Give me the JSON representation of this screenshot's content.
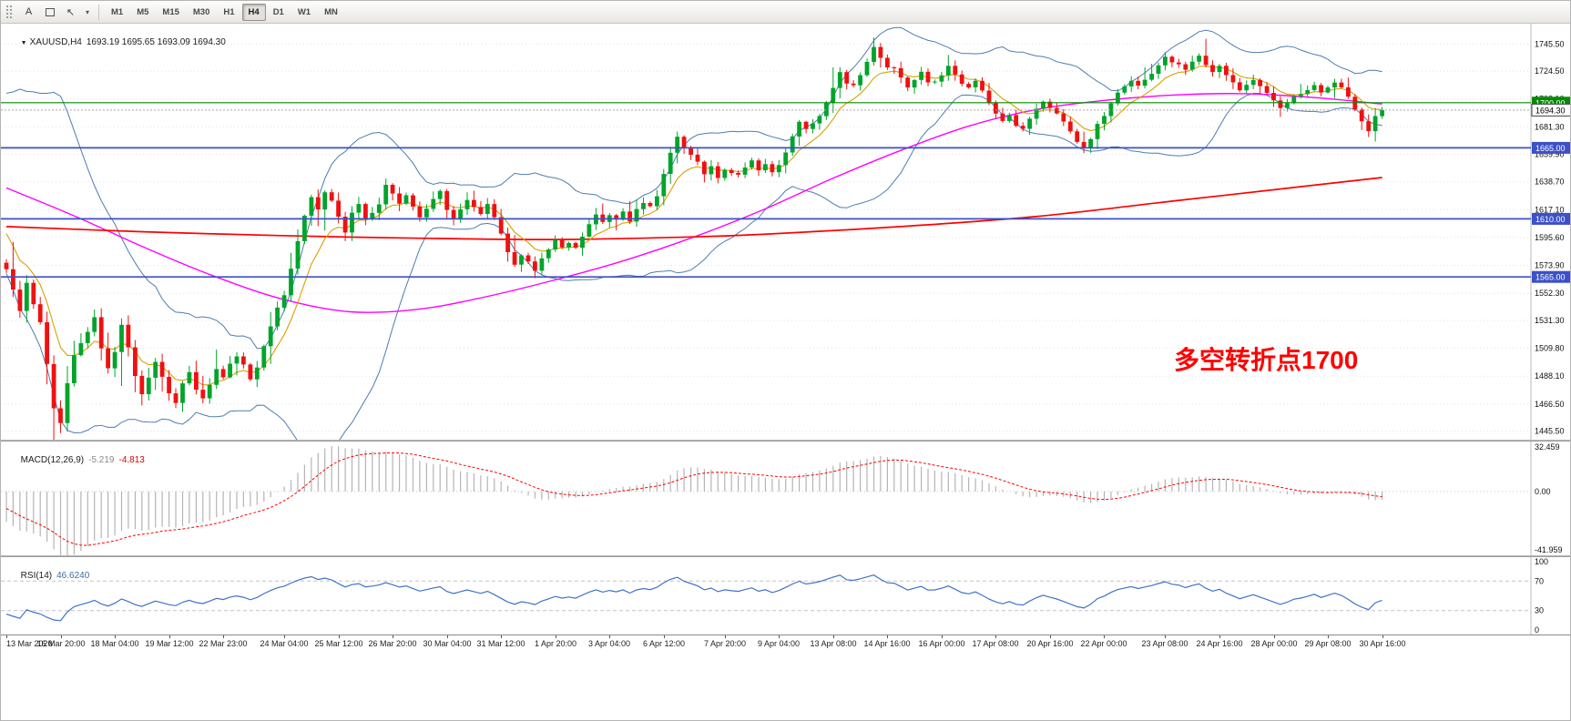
{
  "toolbar": {
    "left_buttons": [
      {
        "type": "grip",
        "name": "toolbar-drag-handle"
      },
      {
        "type": "text",
        "name": "annotation-letter-button",
        "label": "A"
      },
      {
        "type": "box",
        "name": "text-box-button"
      },
      {
        "type": "cursor",
        "name": "cursor-tool-button",
        "glyph": "↖"
      },
      {
        "type": "caret",
        "name": "cursor-dropdown-button",
        "glyph": "▾"
      }
    ],
    "timeframes": [
      "M1",
      "M5",
      "M15",
      "M30",
      "H1",
      "H4",
      "D1",
      "W1",
      "MN"
    ],
    "active_timeframe": "H4"
  },
  "main_chart": {
    "collapse_icon": "▼",
    "symbol_period": "XAUUSD,H4",
    "ohlc_text": "1693.19 1695.65 1693.09 1694.30",
    "scale": {
      "max": 1757.0,
      "min": 1443.1
    },
    "price_axis_labels": [
      "1745.50",
      "1724.50",
      "1703.10",
      "1681.30",
      "1659.90",
      "1638.70",
      "1617.10",
      "1595.60",
      "1573.90",
      "1552.30",
      "1531.30",
      "1509.80",
      "1488.10",
      "1466.50",
      "1445.50"
    ],
    "levels": [
      {
        "price": 1700.0,
        "label": "1700.00",
        "color": "green"
      },
      {
        "price": 1665.0,
        "label": "1665.00",
        "color": "blue"
      },
      {
        "price": 1610.0,
        "label": "1610.00",
        "color": "blue"
      },
      {
        "price": 1565.0,
        "label": "1565.00",
        "color": "blue"
      }
    ],
    "bid": {
      "price": 1694.3,
      "label": "1694.30"
    },
    "annotation": {
      "text": "多空转折点1700",
      "color": "#ff0000"
    },
    "ema_period": 8,
    "bb": {
      "period": 20,
      "dev": 2
    },
    "ma_mid": {
      "anchors": [
        [
          0,
          1634
        ],
        [
          0.05,
          1612
        ],
        [
          0.1,
          1588
        ],
        [
          0.15,
          1566
        ],
        [
          0.2,
          1548
        ],
        [
          0.25,
          1538
        ],
        [
          0.3,
          1540
        ],
        [
          0.35,
          1550
        ],
        [
          0.4,
          1563
        ],
        [
          0.45,
          1578
        ],
        [
          0.5,
          1596
        ],
        [
          0.55,
          1617
        ],
        [
          0.6,
          1641
        ],
        [
          0.65,
          1663
        ],
        [
          0.7,
          1682
        ],
        [
          0.75,
          1695
        ],
        [
          0.8,
          1702
        ],
        [
          0.85,
          1706
        ],
        [
          0.9,
          1707
        ],
        [
          0.95,
          1704
        ],
        [
          1,
          1699
        ]
      ]
    },
    "ma_slow": {
      "anchors": [
        [
          0,
          1604
        ],
        [
          0.1,
          1600
        ],
        [
          0.2,
          1597
        ],
        [
          0.3,
          1595
        ],
        [
          0.4,
          1594
        ],
        [
          0.5,
          1596
        ],
        [
          0.55,
          1598
        ],
        [
          0.65,
          1604
        ],
        [
          0.75,
          1612
        ],
        [
          0.85,
          1624
        ],
        [
          0.95,
          1636
        ],
        [
          1,
          1642
        ]
      ]
    },
    "candles": {
      "first_open": 1576.0,
      "wicks": {
        "base": 0.8,
        "body_factor": 0.5,
        "spike_chance": 0.12,
        "spike_mult": 2.4,
        "seed": 11
      },
      "warmup_closes": [
        1652,
        1658,
        1666,
        1672,
        1678,
        1683,
        1679,
        1671,
        1664,
        1658,
        1650,
        1655,
        1661,
        1668,
        1674,
        1680,
        1672,
        1660,
        1648,
        1635,
        1620,
        1605,
        1592,
        1600,
        1588,
        1578
      ],
      "closes": [
        1571.0,
        1555.2,
        1538.6,
        1560.4,
        1543.8,
        1529.9,
        1497.5,
        1463.2,
        1451.8,
        1482.6,
        1504.3,
        1513.7,
        1522.4,
        1533.8,
        1509.6,
        1494.2,
        1506.8,
        1527.9,
        1510.5,
        1488.3,
        1474.1,
        1486.9,
        1499.2,
        1487.6,
        1474.8,
        1467.3,
        1482.5,
        1491.2,
        1477.6,
        1470.9,
        1481.3,
        1493.6,
        1487.2,
        1497.8,
        1503.4,
        1497.1,
        1485.6,
        1494.8,
        1511.3,
        1526.7,
        1541.2,
        1550.8,
        1571.4,
        1592.7,
        1612.5,
        1626.8,
        1617.3,
        1630.6,
        1624.1,
        1611.7,
        1599.4,
        1614.8,
        1621.5,
        1609.8,
        1614.6,
        1621.2,
        1636.4,
        1629.7,
        1621.8,
        1628.3,
        1619.5,
        1611.2,
        1617.8,
        1625.4,
        1631.6,
        1616.9,
        1609.7,
        1617.4,
        1624.6,
        1619.2,
        1613.8,
        1621.5,
        1611.3,
        1598.6,
        1584.2,
        1574.5,
        1581.7,
        1577.0,
        1569.8,
        1579.4,
        1586.2,
        1593.6,
        1587.9,
        1591.3,
        1587.6,
        1596.2,
        1605.8,
        1613.4,
        1607.6,
        1612.8,
        1609.4,
        1615.7,
        1607.9,
        1617.6,
        1622.3,
        1619.8,
        1627.5,
        1644.8,
        1661.2,
        1673.6,
        1664.9,
        1659.7,
        1654.3,
        1644.6,
        1650.8,
        1641.7,
        1647.9,
        1645.6,
        1644.2,
        1649.8,
        1655.3,
        1647.6,
        1652.4,
        1646.1,
        1651.7,
        1661.4,
        1673.8,
        1685.2,
        1679.6,
        1683.9,
        1689.6,
        1699.8,
        1711.4,
        1723.7,
        1714.8,
        1713.5,
        1721.3,
        1731.6,
        1743.2,
        1734.8,
        1727.4,
        1726.8,
        1719.5,
        1711.8,
        1717.6,
        1723.9,
        1715.7,
        1716.4,
        1721.2,
        1728.6,
        1721.9,
        1714.6,
        1711.8,
        1716.9,
        1709.4,
        1699.7,
        1691.6,
        1685.8,
        1690.4,
        1682.1,
        1679.8,
        1687.6,
        1695.2,
        1700.8,
        1695.9,
        1691.7,
        1685.4,
        1677.8,
        1669.6,
        1664.9,
        1671.8,
        1683.6,
        1689.7,
        1699.4,
        1707.8,
        1712.6,
        1716.9,
        1713.2,
        1717.8,
        1722.4,
        1728.9,
        1735.6,
        1731.2,
        1729.8,
        1725.6,
        1731.8,
        1736.4,
        1729.2,
        1723.8,
        1728.6,
        1721.4,
        1715.8,
        1709.6,
        1713.8,
        1717.6,
        1712.9,
        1707.6,
        1701.8,
        1695.9,
        1699.6,
        1704.8,
        1706.7,
        1709.8,
        1713.6,
        1707.9,
        1711.8,
        1715.6,
        1711.9,
        1704.6,
        1694.8,
        1685.6,
        1677.9,
        1689.6,
        1694.3
      ]
    },
    "time_labels": [
      "13 Mar 2020",
      "16 Mar 20:00",
      "18 Mar 04:00",
      "19 Mar 12:00",
      "22 Mar 23:00",
      "24 Mar 04:00",
      "25 Mar 12:00",
      "26 Mar 20:00",
      "30 Mar 04:00",
      "31 Mar 12:00",
      "1 Apr 20:00",
      "3 Apr 04:00",
      "6 Apr 12:00",
      "7 Apr 20:00",
      "9 Apr 04:00",
      "13 Apr 08:00",
      "14 Apr 16:00",
      "16 Apr 00:00",
      "17 Apr 08:00",
      "20 Apr 16:00",
      "22 Apr 00:00",
      "23 Apr 08:00",
      "24 Apr 16:00",
      "28 Apr 00:00",
      "29 Apr 08:00",
      "30 Apr 16:00"
    ]
  },
  "macd": {
    "label": "MACD(12,26,9)",
    "value_main": "-5.219",
    "value_signal": "-4.813",
    "periods": [
      12,
      26,
      9
    ],
    "scale": {
      "max": 32.459,
      "min": -41.959
    },
    "scale_labels": [
      "32.459",
      "0.00",
      "-41.959"
    ]
  },
  "rsi": {
    "label": "RSI(14)",
    "value": "46.6240",
    "period": 14,
    "scale_labels": [
      "100",
      "70",
      "30",
      "0"
    ],
    "level_lines": [
      70,
      30
    ]
  },
  "colors": {
    "candle_up": "#00a42a",
    "candle_down": "#f01010",
    "bollinger": "#4f7cb0",
    "ema_fast": "#d8a000",
    "ma_mid": "#ff00ff",
    "ma_slow": "#ff0000",
    "grid": "#e2e2e2",
    "level_green": "#008c00",
    "level_blue": "#3c50c8",
    "bid_line": "#a8a8a8",
    "macd_hist": "#b4b4b4",
    "macd_signal": "#ff0000",
    "macd_value_main": "#8a8a8a",
    "macd_value_signal": "#e00000",
    "rsi_line": "#4072c8",
    "rsi_levels": "#c4c4c4",
    "rsi_value": "#3a6ea5",
    "axis_text": "#111111"
  }
}
